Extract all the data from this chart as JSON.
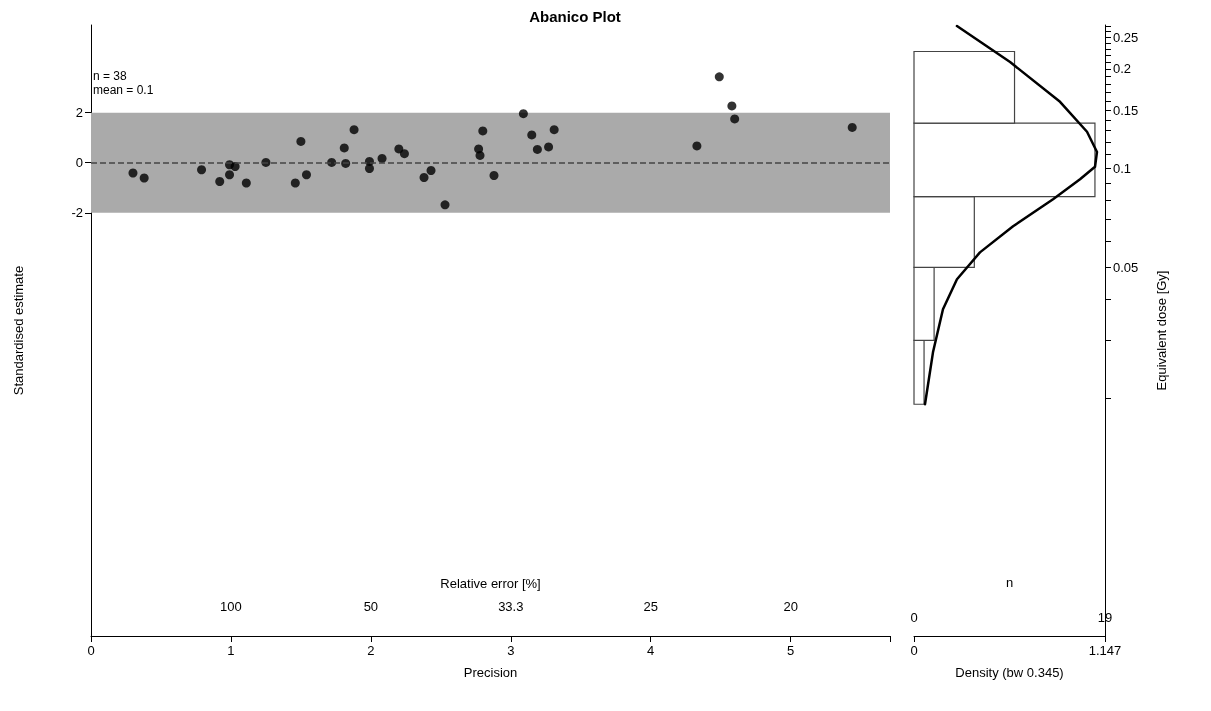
{
  "chart_data": [
    {
      "type": "scatter",
      "title": "Abanico Plot",
      "xlabel": "Precision",
      "ylabel": "Standardised estimate",
      "annotations": [
        "n = 38",
        "mean = 0.1",
        "Relative error [%]",
        "100",
        "50",
        "33.3",
        "25",
        "20"
      ],
      "x": [
        0.3,
        0.38,
        0.79,
        0.92,
        0.99,
        0.99,
        1.03,
        1.11,
        1.25,
        1.46,
        1.5,
        1.54,
        1.72,
        1.81,
        1.82,
        1.88,
        1.99,
        1.99,
        2.08,
        2.2,
        2.24,
        2.38,
        2.43,
        2.53,
        2.77,
        2.78,
        2.8,
        2.88,
        3.09,
        3.15,
        3.31,
        3.19,
        3.27,
        4.33,
        4.49,
        4.58,
        4.6,
        5.44
      ],
      "values": [
        -0.41,
        -0.61,
        -0.28,
        -0.75,
        -0.08,
        -0.48,
        -0.15,
        -0.81,
        0.01,
        -0.81,
        0.85,
        -0.48,
        0.01,
        0.59,
        -0.03,
        1.32,
        0.05,
        -0.23,
        0.17,
        0.55,
        0.36,
        -0.59,
        -0.31,
        -1.68,
        0.55,
        0.29,
        1.27,
        -0.51,
        1.96,
        1.11,
        1.32,
        0.53,
        0.63,
        0.67,
        3.43,
        2.27,
        1.75,
        1.41
      ],
      "color": "#000000",
      "marker": "circle",
      "grid": false,
      "xlim": [
        0,
        5.71
      ],
      "xticks": [
        0,
        1,
        2,
        3,
        4,
        5,
        {
          "value": 5.71,
          "label": null
        }
      ],
      "ylim": [
        -18.9,
        5.5
      ],
      "yticks": [
        -2,
        0,
        2
      ],
      "bands": [
        {
          "axis": "y",
          "from": -2,
          "to": 2,
          "color": "#aaaaaa"
        }
      ],
      "ref_lines": [
        {
          "axis": "y",
          "value": 0,
          "color": "#444444",
          "line_style": "dashed"
        }
      ]
    },
    {
      "type": "histogram",
      "orientation": "horizontal",
      "log": "y",
      "ylabel": "Equivalent dose [Gy]",
      "xlabel": "n",
      "x2label": "Density (bw 0.345)",
      "grid": false,
      "bins": [
        0.0192,
        0.03,
        0.05,
        0.082,
        0.137,
        0.226
      ],
      "values": [
        1,
        2,
        6,
        18,
        10
      ],
      "color": "#ffffff",
      "xlim": [
        0,
        19
      ],
      "xticks": [
        0,
        19
      ],
      "x2lim": [
        0,
        1.147
      ],
      "x2ticks": [
        0,
        1.147
      ],
      "ylim": [
        0.0038,
        0.272
      ],
      "yticks": [
        {
          "value": 0.02,
          "label": null
        },
        {
          "value": 0.03,
          "label": null
        },
        {
          "value": 0.04,
          "label": null
        },
        0.05,
        {
          "value": 0.06,
          "label": null
        },
        {
          "value": 0.07,
          "label": null
        },
        {
          "value": 0.08,
          "label": null
        },
        {
          "value": 0.09,
          "label": null
        },
        0.1,
        {
          "value": 0.11,
          "label": null
        },
        {
          "value": 0.12,
          "label": null
        },
        {
          "value": 0.13,
          "label": null
        },
        {
          "value": 0.14,
          "label": null
        },
        0.15,
        {
          "value": 0.16,
          "label": null
        },
        {
          "value": 0.17,
          "label": null
        },
        {
          "value": 0.18,
          "label": null
        },
        {
          "value": 0.19,
          "label": null
        },
        0.2,
        {
          "value": 0.21,
          "label": null
        },
        {
          "value": 0.22,
          "label": null
        },
        {
          "value": 0.23,
          "label": null
        },
        {
          "value": 0.24,
          "label": null
        },
        0.25,
        {
          "value": 0.26,
          "label": null
        },
        {
          "value": 0.27,
          "label": null
        }
      ],
      "series": [
        {
          "type": "line",
          "axis": "x2",
          "color": "#000000",
          "x": [
            0.27,
            0.21,
            0.159,
            0.129,
            0.112,
            0.101,
            0.0925,
            0.0805,
            0.0666,
            0.0555,
            0.046,
            0.0373,
            0.0276,
            0.0192
          ],
          "values": [
            0.258,
            0.577,
            0.877,
            1.039,
            1.099,
            1.087,
            0.997,
            0.835,
            0.595,
            0.396,
            0.258,
            0.174,
            0.114,
            0.066
          ]
        }
      ]
    }
  ]
}
